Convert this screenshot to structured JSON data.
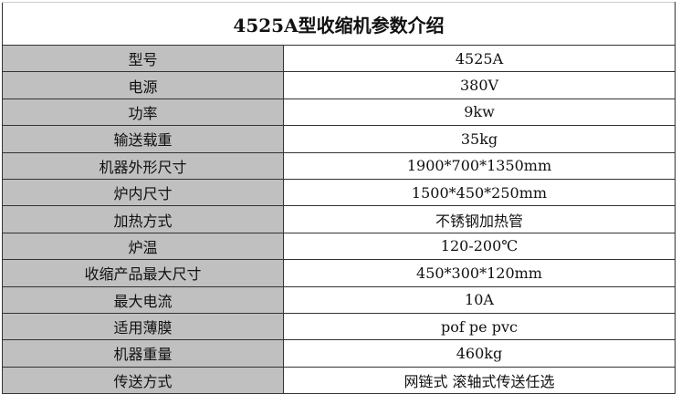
{
  "title": "4525A型收缩机参数介绍",
  "rows": [
    {
      "label": "型号",
      "value": "4525A"
    },
    {
      "label": "电源",
      "value": "380V"
    },
    {
      "label": "功率",
      "value": "9kw"
    },
    {
      "label": "输送载重",
      "value": "35kg"
    },
    {
      "label": "机器外形尺寸",
      "value": "1900*700*1350mm"
    },
    {
      "label": "炉内尺寸",
      "value": "1500*450*250mm"
    },
    {
      "label": "加热方式",
      "value": "不锈钢加热管"
    },
    {
      "label": "炉温",
      "value": "120-200℃"
    },
    {
      "label": "收缩产品最大尺寸",
      "value": "450*300*120mm"
    },
    {
      "label": "最大电流",
      "value": "10A"
    },
    {
      "label": "适用薄膜",
      "value": "pof pe pvc"
    },
    {
      "label": "机器重量",
      "value": "460kg"
    },
    {
      "label": "传送方式",
      "value": "网链式 滚轴式传送任选"
    }
  ]
}
